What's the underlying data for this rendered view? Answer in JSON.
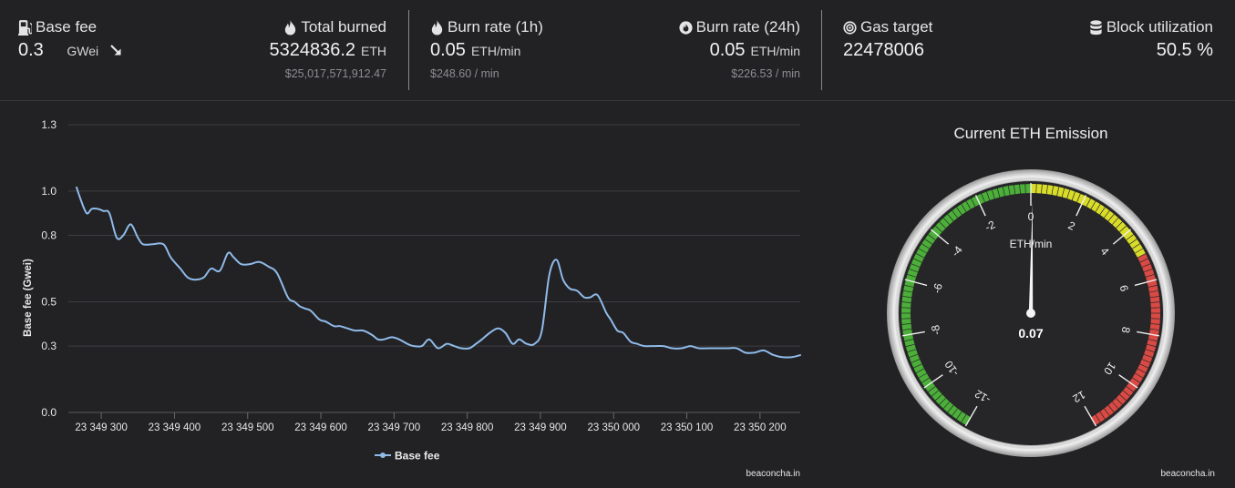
{
  "stats": {
    "base_fee": {
      "label": "Base fee",
      "value": "0.3",
      "unit": "GWei",
      "trend_icon": "arrow-down-right-icon"
    },
    "total_burned": {
      "label": "Total burned",
      "value": "5324836.2",
      "unit": "ETH",
      "sub": "$25,017,571,912.47"
    },
    "burn_rate_1h": {
      "label": "Burn rate (1h)",
      "value": "0.05",
      "unit": "ETH/min",
      "sub": "$248.60 / min"
    },
    "burn_rate_24h": {
      "label": "Burn rate (24h)",
      "value": "0.05",
      "unit": "ETH/min",
      "sub": "$226.53 / min"
    },
    "gas_target": {
      "label": "Gas target",
      "value": "22478006"
    },
    "block_utilization": {
      "label": "Block utilization",
      "value": "50.5 %"
    }
  },
  "chart_data": [
    {
      "type": "line",
      "title": "",
      "xlabel": "",
      "ylabel": "Base fee (Gwei)",
      "ylim": [
        0,
        1.3
      ],
      "xlim": [
        23349255,
        23350255
      ],
      "ytick_labels": [
        "0.0",
        "0.3",
        "0.5",
        "0.8",
        "1.0",
        "1.3"
      ],
      "ytick_values": [
        0,
        0.3,
        0.5,
        0.8,
        1.0,
        1.3
      ],
      "xtick_labels": [
        "23 349 300",
        "23 349 400",
        "23 349 500",
        "23 349 600",
        "23 349 700",
        "23 349 800",
        "23 349 900",
        "23 350 000",
        "23 350 100",
        "23 350 200"
      ],
      "xtick_values": [
        23349300,
        23349400,
        23349500,
        23349600,
        23349700,
        23349800,
        23349900,
        23350000,
        23350100,
        23350200
      ],
      "grid": true,
      "legend_position": "bottom",
      "color": "#8fbbe9",
      "series": [
        {
          "name": "Base fee",
          "x": [
            23349266,
            23349272,
            23349280,
            23349287,
            23349295,
            23349303,
            23349311,
            23349321,
            23349330,
            23349340,
            23349350,
            23349357,
            23349370,
            23349385,
            23349395,
            23349408,
            23349418,
            23349428,
            23349440,
            23349450,
            23349462,
            23349473,
            23349481,
            23349491,
            23349503,
            23349516,
            23349528,
            23349540,
            23349555,
            23349564,
            23349571,
            23349578,
            23349586,
            23349598,
            23349607,
            23349618,
            23349626,
            23349636,
            23349647,
            23349658,
            23349670,
            23349678,
            23349686,
            23349697,
            23349707,
            23349718,
            23349727,
            23349738,
            23349748,
            23349760,
            23349772,
            23349782,
            23349792,
            23349803,
            23349812,
            23349820,
            23349831,
            23349842,
            23349852,
            23349862,
            23349871,
            23349881,
            23349892,
            23349902,
            23349912,
            23349922,
            23349931,
            23349940,
            23349950,
            23349960,
            23349968,
            23349978,
            23349990,
            23349996,
            23350005,
            23350013,
            23350023,
            23350032,
            23350042,
            23350056,
            23350068,
            23350080,
            23350093,
            23350105,
            23350116,
            23350130,
            23350142,
            23350155,
            23350168,
            23350180,
            23350192,
            23350205,
            23350218,
            23350230,
            23350244,
            23350256
          ],
          "values": [
            1.02,
            0.96,
            0.9,
            0.92,
            0.92,
            0.91,
            0.9,
            0.79,
            0.8,
            0.85,
            0.79,
            0.76,
            0.76,
            0.76,
            0.7,
            0.65,
            0.61,
            0.6,
            0.61,
            0.65,
            0.64,
            0.72,
            0.7,
            0.67,
            0.67,
            0.68,
            0.66,
            0.63,
            0.52,
            0.5,
            0.48,
            0.47,
            0.46,
            0.42,
            0.41,
            0.39,
            0.39,
            0.38,
            0.37,
            0.37,
            0.35,
            0.33,
            0.33,
            0.34,
            0.33,
            0.31,
            0.3,
            0.3,
            0.33,
            0.29,
            0.31,
            0.3,
            0.29,
            0.29,
            0.31,
            0.33,
            0.36,
            0.38,
            0.36,
            0.31,
            0.33,
            0.31,
            0.31,
            0.37,
            0.62,
            0.69,
            0.6,
            0.56,
            0.55,
            0.52,
            0.52,
            0.53,
            0.45,
            0.42,
            0.37,
            0.36,
            0.32,
            0.31,
            0.3,
            0.3,
            0.3,
            0.29,
            0.29,
            0.3,
            0.29,
            0.29,
            0.29,
            0.29,
            0.29,
            0.27,
            0.27,
            0.28,
            0.26,
            0.25,
            0.25,
            0.26
          ]
        }
      ],
      "credit": "beaconcha.in"
    },
    {
      "type": "gauge",
      "title": "Current ETH Emission",
      "unit_label": "ETH/min",
      "value": 0.07,
      "value_label": "0.07",
      "range": [
        -12,
        12
      ],
      "tick_labels": [
        "-12",
        "-10",
        "-8",
        "-6",
        "-4",
        "-2",
        "0",
        "2",
        "4",
        "6",
        "8",
        "10",
        "12"
      ],
      "bands": [
        {
          "from": -12,
          "to": 0,
          "color": "#4caf3a"
        },
        {
          "from": 0,
          "to": 5,
          "color": "#d9dd2a"
        },
        {
          "from": 5,
          "to": 12,
          "color": "#d94a44"
        }
      ],
      "credit": "beaconcha.in"
    }
  ]
}
